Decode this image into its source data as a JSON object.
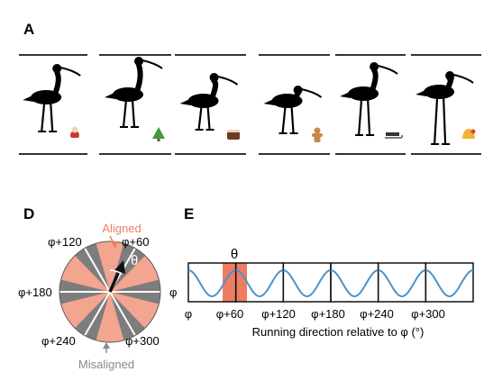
{
  "panel_a": {
    "label": "A",
    "birds": [
      {
        "item_icon": "santa-icon"
      },
      {
        "item_icon": "tree-icon"
      },
      {
        "item_icon": "cake-icon"
      },
      {
        "item_icon": "gingerbread-icon"
      },
      {
        "item_icon": "sled-icon"
      },
      {
        "item_icon": "bell-icon"
      }
    ]
  },
  "panel_d": {
    "label": "D",
    "aligned_label": "Aligned",
    "misaligned_label": "Misaligned",
    "theta_label": "θ",
    "phi_label": "φ",
    "angle_labels": {
      "a60": "φ+60",
      "a120": "φ+120",
      "a180": "φ+180",
      "a240": "φ+240",
      "a300": "φ+300"
    },
    "colors": {
      "aligned": "#f08a70",
      "misaligned": "#8a8a8a",
      "wheel_gray": "#808080",
      "wheel_pink": "#f4a58f"
    }
  },
  "panel_e": {
    "label": "E",
    "theta_label": "θ",
    "xlabel": "Running direction relative to φ (°)",
    "ticks": [
      "φ",
      "φ+60",
      "φ+120",
      "φ+180",
      "φ+240",
      "φ+300"
    ],
    "colors": {
      "curve": "#4b93c9",
      "highlight": "#ee7d63"
    }
  }
}
